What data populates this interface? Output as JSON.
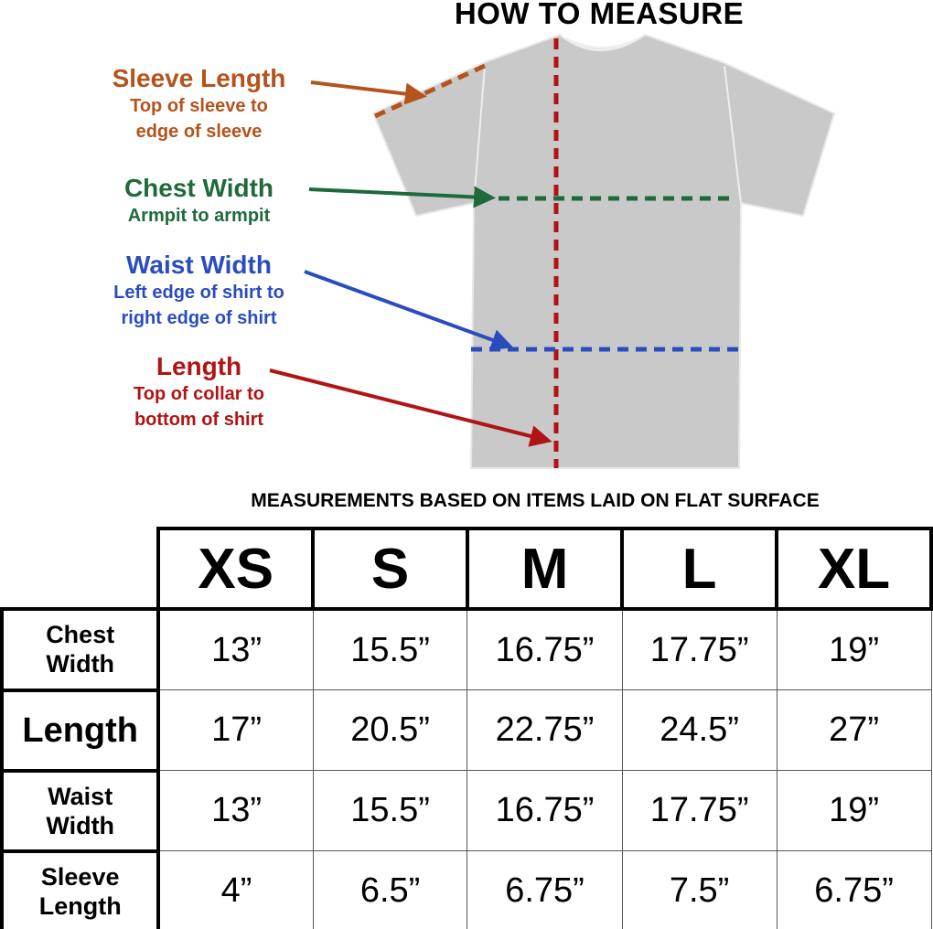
{
  "title": "HOW TO MEASURE",
  "colors": {
    "sleeve": "#b5531c",
    "chest": "#1e6a3a",
    "waist": "#2a4cbf",
    "length": "#b01414",
    "shirt": "#c9c9c9"
  },
  "labels": {
    "sleeve": {
      "heading": "Sleeve Length",
      "line1": "Top of sleeve to",
      "line2": "edge of sleeve"
    },
    "chest": {
      "heading": "Chest Width",
      "line1": "Armpit to armpit"
    },
    "waist": {
      "heading": "Waist Width",
      "line1": "Left edge of shirt to",
      "line2": "right edge of shirt"
    },
    "length": {
      "heading": "Length",
      "line1": "Top of collar to",
      "line2": "bottom of shirt"
    }
  },
  "note": "MEASUREMENTS BASED ON ITEMS LAID ON FLAT SURFACE",
  "table": {
    "sizes": [
      "XS",
      "S",
      "M",
      "L",
      "XL"
    ],
    "rows": [
      {
        "label": [
          "Chest",
          "Width"
        ],
        "values": [
          "13”",
          "15.5”",
          "16.75”",
          "17.75”",
          "19”"
        ]
      },
      {
        "label": [
          "Length",
          ""
        ],
        "values": [
          "17”",
          "20.5”",
          "22.75”",
          "24.5”",
          "27”"
        ]
      },
      {
        "label": [
          "Waist",
          "Width"
        ],
        "values": [
          "13”",
          "15.5”",
          "16.75”",
          "17.75”",
          "19”"
        ]
      },
      {
        "label": [
          "Sleeve",
          "Length"
        ],
        "values": [
          "4”",
          "6.5”",
          "6.75”",
          "7.5”",
          "6.75”"
        ]
      }
    ]
  }
}
